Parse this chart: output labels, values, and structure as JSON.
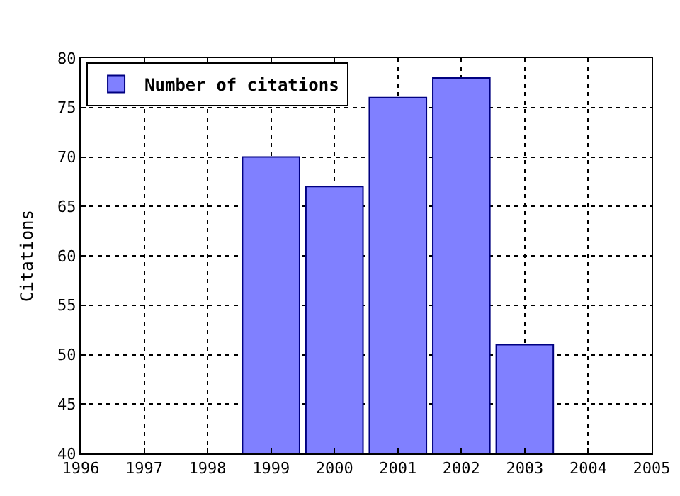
{
  "chart_data": {
    "type": "bar",
    "ylabel": "Citations",
    "x": [
      1999,
      2000,
      2001,
      2002,
      2003
    ],
    "series": [
      {
        "name": "Number of citations",
        "color": "#8080ff",
        "values": [
          70,
          67,
          76,
          78,
          51
        ]
      }
    ],
    "xlim": [
      1996,
      2005
    ],
    "xticks": [
      1996,
      1997,
      1998,
      1999,
      2000,
      2001,
      2002,
      2003,
      2004,
      2005
    ],
    "ylim": [
      40,
      80
    ],
    "yticks": [
      40,
      45,
      50,
      55,
      60,
      65,
      70,
      75,
      80
    ],
    "grid": true,
    "legend": "top left"
  }
}
